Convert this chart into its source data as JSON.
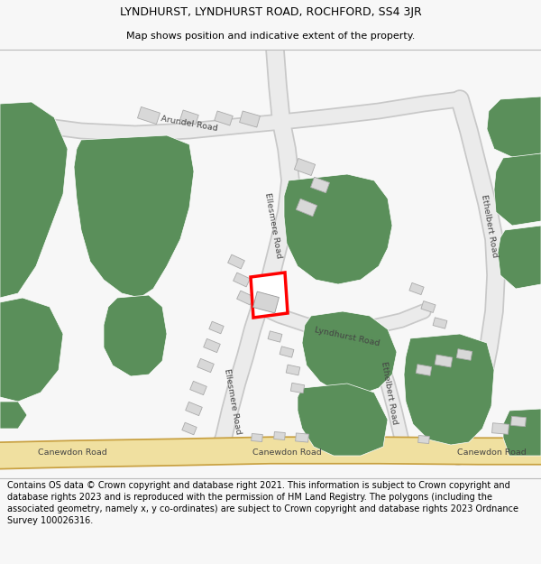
{
  "title_line1": "LYNDHURST, LYNDHURST ROAD, ROCHFORD, SS4 3JR",
  "title_line2": "Map shows position and indicative extent of the property.",
  "footer_text": "Contains OS data © Crown copyright and database right 2021. This information is subject to Crown copyright and database rights 2023 and is reproduced with the permission of HM Land Registry. The polygons (including the associated geometry, namely x, y co-ordinates) are subject to Crown copyright and database rights 2023 Ordnance Survey 100026316.",
  "title_fontsize": 9.0,
  "subtitle_fontsize": 8.0,
  "footer_fontsize": 7.0,
  "bg_color": "#f7f7f7",
  "map_bg": "#ffffff",
  "green_color": "#5a8f5a",
  "road_color": "#ebebeb",
  "road_outline": "#c8c8c8",
  "yellow_road_color": "#f0e0a0",
  "yellow_road_outline": "#c8a040",
  "red_plot_color": "#ff0000",
  "small_building_color": "#d8d8d8",
  "small_building_edge": "#aaaaaa"
}
